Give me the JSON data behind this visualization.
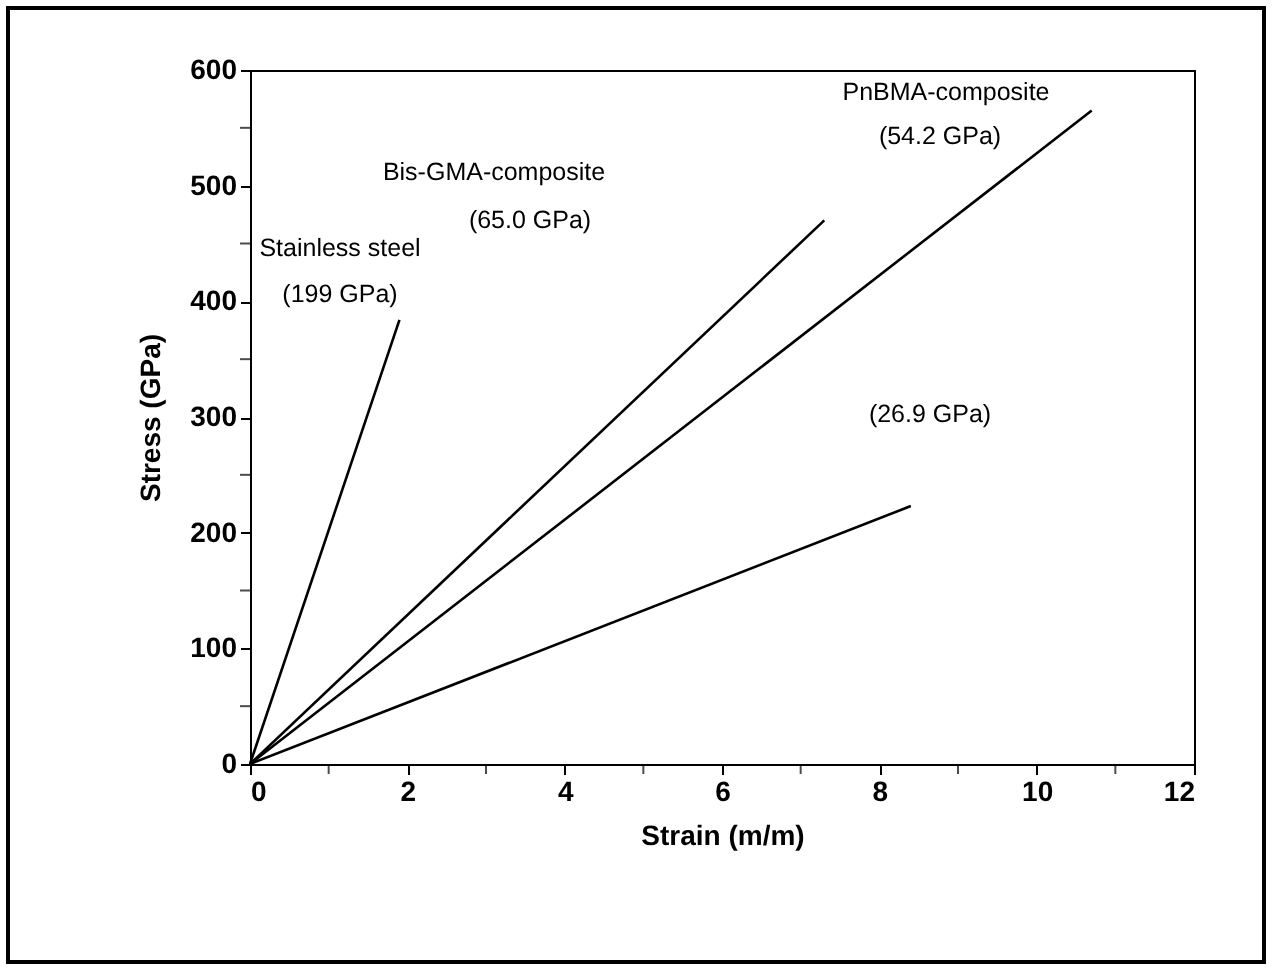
{
  "chart_data": {
    "type": "line",
    "xlabel": "Strain (m/m)",
    "ylabel": "Stress (GPa)",
    "xlim": [
      0,
      12
    ],
    "ylim": [
      0,
      600
    ],
    "xticks": [
      0,
      {
        "value": 1,
        "label": null
      },
      2,
      {
        "value": 3,
        "label": null
      },
      4,
      {
        "value": 5,
        "label": null
      },
      6,
      {
        "value": 7,
        "label": null
      },
      8,
      {
        "value": 9,
        "label": null
      },
      10,
      {
        "value": 11,
        "label": null
      },
      12
    ],
    "yticks": [
      0,
      {
        "value": 50,
        "label": null
      },
      100,
      {
        "value": 150,
        "label": null
      },
      200,
      {
        "value": 250,
        "label": null
      },
      300,
      {
        "value": 350,
        "label": null
      },
      400,
      {
        "value": 450,
        "label": null
      },
      500,
      {
        "value": 550,
        "label": null
      },
      600
    ],
    "line_style": "solid",
    "series": [
      {
        "color": "#000000",
        "x": [
          0,
          1.9
        ],
        "values": [
          0,
          384
        ]
      },
      {
        "color": "#000000",
        "x": [
          0,
          7.3
        ],
        "values": [
          0,
          470
        ]
      },
      {
        "color": "#000000",
        "x": [
          0,
          10.7
        ],
        "values": [
          0,
          565
        ]
      },
      {
        "color": "#000000",
        "x": [
          0,
          8.4
        ],
        "values": [
          0,
          223
        ]
      }
    ],
    "annotations": [
      "Stainless steel",
      "(199 GPa)",
      "Bis-GMA-composite",
      "(65.0 GPa)",
      "PnBMA-composite",
      "(54.2 GPa)",
      "(26.9 GPa)"
    ]
  }
}
